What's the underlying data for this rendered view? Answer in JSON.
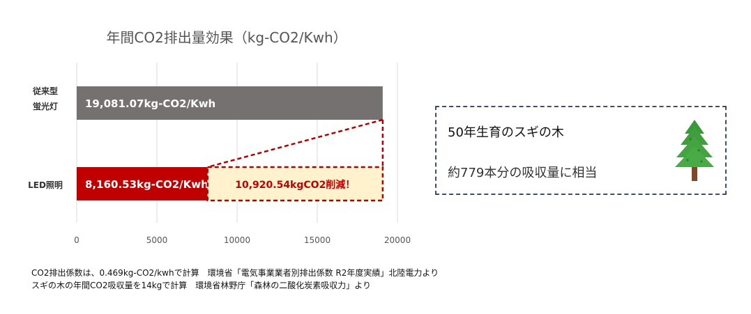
{
  "chart_data": {
    "type": "bar",
    "orientation": "horizontal",
    "title": "年間CO2排出量効果（kg-CO2/Kwh）",
    "categories": [
      [
        "従来型",
        "蛍光灯"
      ],
      [
        "LED照明"
      ]
    ],
    "values": [
      19081.07,
      8160.53
    ],
    "bar_labels": [
      "19,081.07kg-CO2/Kwh",
      "8,160.53kg-CO2/Kwh"
    ],
    "reduction": {
      "value": 10920.54,
      "label": "10,920.54kgCO2削減！"
    },
    "xlim": [
      0,
      20000
    ],
    "xticks": [
      0,
      5000,
      10000,
      15000,
      20000
    ],
    "tick_labels": [
      "0",
      "5000",
      "10000",
      "15000",
      "20000"
    ],
    "grid": true,
    "colors": {
      "conventional": "#767171",
      "led": "#c00000",
      "reduction_fill": "#fff2cc",
      "reduction_border": "#b00000"
    }
  },
  "note": {
    "line1": "50年生育のスギの木",
    "line2": "約779本分の吸収量に相当",
    "icon": "tree-icon"
  },
  "footnotes": [
    "CO2排出係数は、0.469kg-CO2/kwhで計算　環境省「電気事業業者別排出係数 R2年度実績」北陸電力より",
    "スギの木の年間CO2吸収量を14kgで計算　環境省林野庁「森林の二酸化炭素吸収力」より"
  ]
}
